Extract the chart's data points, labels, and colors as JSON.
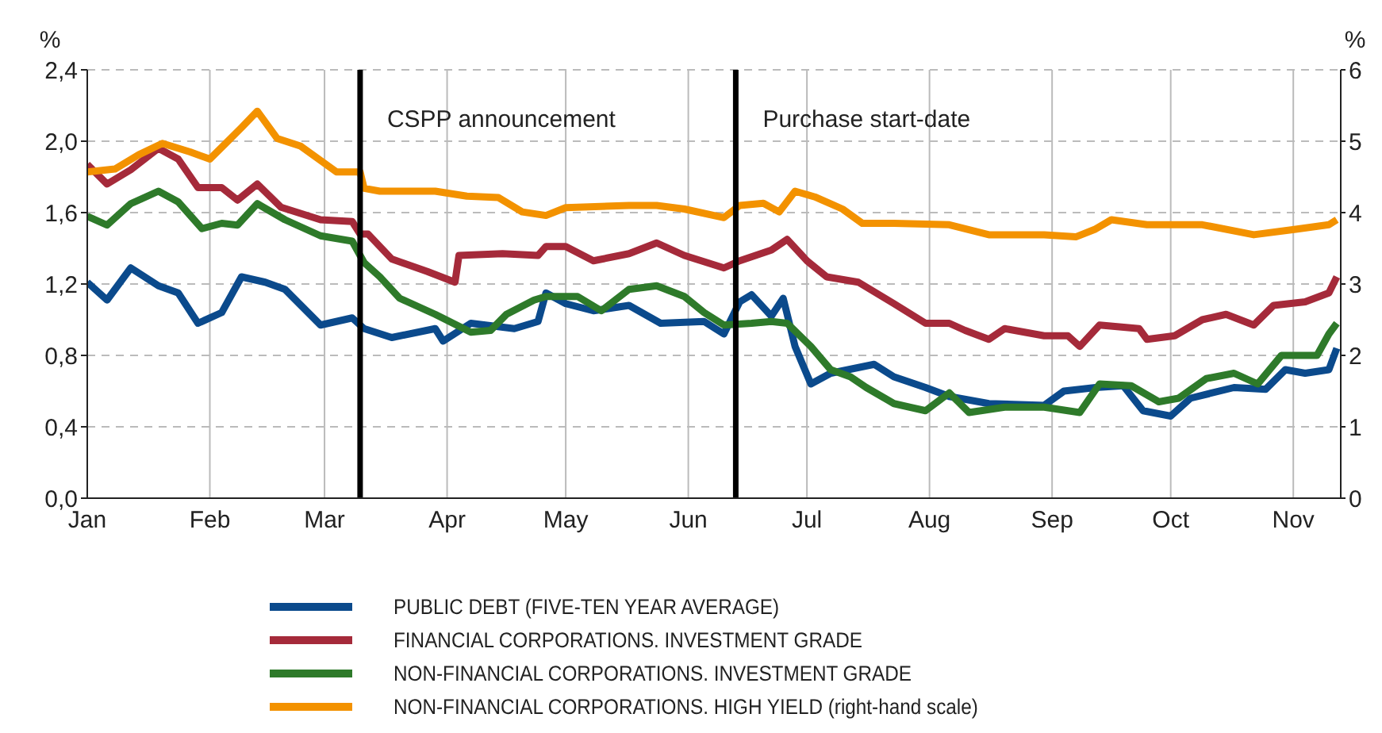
{
  "chart_data": {
    "type": "line",
    "ylabel": "%",
    "y2label": "%",
    "xlim": [
      "--01-01",
      "--11-13"
    ],
    "xticks": [
      {
        "value": "--01-01",
        "label": "Jan"
      },
      {
        "value": "--02-01",
        "label": "Feb"
      },
      {
        "value": "--03-01",
        "label": "Mar"
      },
      {
        "value": "--04-01",
        "label": "Apr"
      },
      {
        "value": "--05-01",
        "label": "May"
      },
      {
        "value": "--06-01",
        "label": "Jun"
      },
      {
        "value": "--07-01",
        "label": "Jul"
      },
      {
        "value": "--08-01",
        "label": "Aug"
      },
      {
        "value": "--09-01",
        "label": "Sep"
      },
      {
        "value": "--10-01",
        "label": "Oct"
      },
      {
        "value": "--11-01",
        "label": "Nov"
      }
    ],
    "ylim": [
      0,
      2.4
    ],
    "yticks": [
      {
        "value": 0,
        "label": "0,0"
      },
      {
        "value": 0.4,
        "label": "0,4"
      },
      {
        "value": 0.8,
        "label": "0,8"
      },
      {
        "value": 1.2,
        "label": "1,2"
      },
      {
        "value": 1.6,
        "label": "1,6"
      },
      {
        "value": 2.0,
        "label": "2,0"
      },
      {
        "value": 2.4,
        "label": "2,4"
      }
    ],
    "y2lim": [
      0,
      6
    ],
    "y2ticks": [
      0,
      1,
      2,
      3,
      4,
      5,
      6
    ],
    "grid": true,
    "legend": "bottom",
    "marker": "none",
    "line_style": "solid",
    "ref_lines": [
      {
        "axis": "x",
        "value": "--03-10",
        "label": "CSPP announcement",
        "color": "#000000"
      },
      {
        "axis": "x",
        "value": "--06-13",
        "label": "Purchase start-date",
        "color": "#000000"
      }
    ],
    "series": [
      {
        "name": "PUBLIC DEBT (FIVE-TEN YEAR AVERAGE)",
        "color": "#0b4a8c",
        "x": [
          "--01-01",
          "--01-06",
          "--01-12",
          "--01-19",
          "--01-24",
          "--01-29",
          "--02-04",
          "--02-09",
          "--02-15",
          "--02-20",
          "--02-29",
          "--03-08",
          "--03-11",
          "--03-18",
          "--03-29",
          "--03-31",
          "--04-07",
          "--04-18",
          "--04-24",
          "--04-26",
          "--05-01",
          "--05-08",
          "--05-17",
          "--05-25",
          "--06-05",
          "--06-10",
          "--06-14",
          "--06-17",
          "--06-22",
          "--06-25",
          "--06-28",
          "--07-02",
          "--07-07",
          "--07-18",
          "--07-23",
          "--07-31",
          "--08-06",
          "--08-16",
          "--08-30",
          "--09-04",
          "--09-12",
          "--09-19",
          "--09-24",
          "--10-01",
          "--10-06",
          "--10-17",
          "--10-25",
          "--10-30",
          "--11-04",
          "--11-10",
          "--11-12"
        ],
        "values": [
          1.21,
          1.11,
          1.29,
          1.19,
          1.15,
          0.98,
          1.04,
          1.24,
          1.21,
          1.17,
          0.97,
          1.01,
          0.95,
          0.9,
          0.95,
          0.88,
          0.98,
          0.95,
          0.99,
          1.15,
          1.09,
          1.05,
          1.08,
          0.98,
          0.99,
          0.92,
          1.1,
          1.14,
          1.02,
          1.12,
          0.85,
          0.64,
          0.7,
          0.75,
          0.68,
          0.62,
          0.57,
          0.53,
          0.52,
          0.6,
          0.62,
          0.63,
          0.49,
          0.46,
          0.56,
          0.62,
          0.61,
          0.72,
          0.7,
          0.72,
          0.84
        ]
      },
      {
        "name": "FINANCIAL CORPORATIONS. INVESTMENT GRADE",
        "color": "#a52a3a",
        "x": [
          "--01-01",
          "--01-06",
          "--01-12",
          "--01-19",
          "--01-24",
          "--01-29",
          "--02-04",
          "--02-08",
          "--02-13",
          "--02-19",
          "--02-29",
          "--03-08",
          "--03-10",
          "--03-12",
          "--03-18",
          "--03-27",
          "--04-03",
          "--04-04",
          "--04-15",
          "--04-24",
          "--04-26",
          "--05-01",
          "--05-08",
          "--05-17",
          "--05-24",
          "--05-31",
          "--06-10",
          "--06-14",
          "--06-22",
          "--06-26",
          "--07-01",
          "--07-06",
          "--07-14",
          "--07-23",
          "--07-31",
          "--08-06",
          "--08-10",
          "--08-16",
          "--08-20",
          "--08-30",
          "--09-05",
          "--09-08",
          "--09-13",
          "--09-23",
          "--09-25",
          "--10-02",
          "--10-09",
          "--10-15",
          "--10-22",
          "--10-27",
          "--11-04",
          "--11-10",
          "--11-12"
        ],
        "values": [
          1.87,
          1.76,
          1.84,
          1.96,
          1.9,
          1.74,
          1.74,
          1.67,
          1.76,
          1.63,
          1.56,
          1.55,
          1.48,
          1.48,
          1.34,
          1.27,
          1.21,
          1.36,
          1.37,
          1.36,
          1.41,
          1.41,
          1.33,
          1.37,
          1.43,
          1.36,
          1.29,
          1.33,
          1.39,
          1.45,
          1.33,
          1.24,
          1.21,
          1.09,
          0.98,
          0.98,
          0.94,
          0.89,
          0.95,
          0.91,
          0.91,
          0.85,
          0.97,
          0.95,
          0.89,
          0.91,
          1.0,
          1.03,
          0.97,
          1.08,
          1.1,
          1.15,
          1.24
        ]
      },
      {
        "name": "NON-FINANCIAL CORPORATIONS. INVESTMENT GRADE",
        "color": "#2e7a2a",
        "x": [
          "--01-01",
          "--01-06",
          "--01-12",
          "--01-19",
          "--01-24",
          "--01-30",
          "--02-04",
          "--02-08",
          "--02-13",
          "--02-20",
          "--02-29",
          "--03-08",
          "--03-11",
          "--03-15",
          "--03-20",
          "--03-29",
          "--04-07",
          "--04-12",
          "--04-16",
          "--04-23",
          "--04-26",
          "--05-04",
          "--05-10",
          "--05-17",
          "--05-24",
          "--05-31",
          "--06-05",
          "--06-10",
          "--06-17",
          "--06-22",
          "--06-26",
          "--07-02",
          "--07-07",
          "--07-12",
          "--07-16",
          "--07-23",
          "--07-31",
          "--08-06",
          "--08-11",
          "--08-20",
          "--08-30",
          "--09-08",
          "--09-13",
          "--09-21",
          "--09-28",
          "--10-03",
          "--10-10",
          "--10-17",
          "--10-23",
          "--10-29",
          "--11-07",
          "--11-10",
          "--11-12"
        ],
        "values": [
          1.58,
          1.53,
          1.65,
          1.72,
          1.66,
          1.51,
          1.54,
          1.53,
          1.65,
          1.56,
          1.47,
          1.44,
          1.32,
          1.24,
          1.12,
          1.03,
          0.93,
          0.94,
          1.03,
          1.11,
          1.13,
          1.13,
          1.05,
          1.17,
          1.19,
          1.13,
          1.04,
          0.97,
          0.98,
          0.99,
          0.98,
          0.85,
          0.72,
          0.68,
          0.62,
          0.53,
          0.49,
          0.59,
          0.48,
          0.51,
          0.51,
          0.48,
          0.64,
          0.63,
          0.54,
          0.56,
          0.67,
          0.7,
          0.64,
          0.8,
          0.8,
          0.92,
          0.98
        ]
      },
      {
        "name": "NON-FINANCIAL CORPORATIONS. HIGH YIELD (right-hand scale)",
        "color": "#f39200",
        "axis": "y2",
        "x": [
          "--01-01",
          "--01-08",
          "--01-14",
          "--01-20",
          "--01-27",
          "--02-01",
          "--02-05",
          "--02-09",
          "--02-13",
          "--02-18",
          "--02-24",
          "--03-04",
          "--03-10",
          "--03-11",
          "--03-15",
          "--03-29",
          "--04-06",
          "--04-14",
          "--04-20",
          "--04-26",
          "--05-01",
          "--05-17",
          "--05-24",
          "--05-31",
          "--06-10",
          "--06-14",
          "--06-20",
          "--06-24",
          "--06-28",
          "--07-03",
          "--07-10",
          "--07-15",
          "--07-23",
          "--08-06",
          "--08-16",
          "--08-30",
          "--09-07",
          "--09-12",
          "--09-16",
          "--09-25",
          "--10-09",
          "--10-22",
          "--11-02",
          "--11-10",
          "--11-12"
        ],
        "values": [
          4.57,
          4.61,
          4.81,
          4.97,
          4.85,
          4.75,
          4.97,
          5.19,
          5.42,
          5.04,
          4.93,
          4.57,
          4.57,
          4.34,
          4.3,
          4.3,
          4.23,
          4.21,
          4.01,
          3.96,
          4.07,
          4.1,
          4.1,
          4.05,
          3.93,
          4.1,
          4.13,
          4.01,
          4.3,
          4.22,
          4.05,
          3.85,
          3.85,
          3.83,
          3.69,
          3.69,
          3.66,
          3.77,
          3.9,
          3.83,
          3.83,
          3.69,
          3.77,
          3.83,
          3.9
        ]
      }
    ]
  }
}
